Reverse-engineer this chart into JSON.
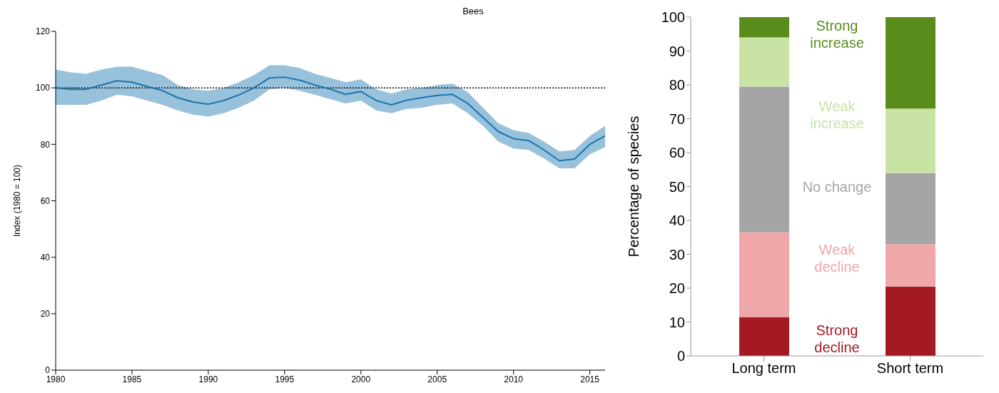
{
  "chart_data": [
    {
      "type": "line",
      "title": "Bees",
      "ylabel": "Index (1980 = 100)",
      "x": [
        1980,
        1981,
        1982,
        1983,
        1984,
        1985,
        1986,
        1987,
        1988,
        1989,
        1990,
        1991,
        1992,
        1993,
        1994,
        1995,
        1996,
        1997,
        1998,
        1999,
        2000,
        2001,
        2002,
        2003,
        2004,
        2005,
        2006,
        2007,
        2008,
        2009,
        2010,
        2011,
        2012,
        2013,
        2014,
        2015,
        2016
      ],
      "series": [
        {
          "color": "#1a75b0",
          "values": [
            100,
            99.5,
            99.5,
            101,
            102.5,
            102,
            100.5,
            99,
            96.5,
            95,
            94.2,
            95.5,
            97.5,
            100,
            103.5,
            103.8,
            102.7,
            101,
            99.5,
            97.7,
            98.7,
            95.5,
            94,
            95.6,
            96.5,
            97.3,
            97.7,
            94.5,
            89.5,
            84.5,
            82,
            81.3,
            78,
            74.2,
            74.8,
            80,
            83
          ],
          "lower": [
            94,
            94,
            94,
            95.5,
            97.5,
            97,
            95.5,
            94,
            92,
            90.5,
            89.8,
            91,
            93,
            95.5,
            99.5,
            100,
            99,
            97.5,
            96,
            94.5,
            95.5,
            92,
            91,
            92.5,
            93,
            94,
            94.5,
            91,
            86.5,
            81,
            78.5,
            78,
            75,
            71.5,
            71.5,
            76.5,
            79
          ],
          "upper": [
            106.5,
            105.5,
            105,
            106.5,
            107.5,
            107.5,
            106,
            104.5,
            101,
            99.5,
            99,
            100,
            102,
            104.5,
            108,
            108,
            107,
            105,
            103.5,
            102,
            103,
            99.5,
            98,
            99.5,
            100,
            101,
            101.5,
            98.5,
            93,
            87.5,
            85,
            84,
            81,
            77.5,
            78,
            83,
            86.5
          ]
        }
      ],
      "xlim": [
        1980,
        2016
      ],
      "xticks": [
        1980,
        1985,
        1990,
        1995,
        2000,
        2005,
        2010,
        2015
      ],
      "ylim": [
        0,
        120
      ],
      "yticks": [
        0,
        20,
        40,
        60,
        80,
        100,
        120
      ],
      "ref_lines": [
        {
          "axis": "y",
          "value": 100,
          "color": "#000000",
          "line_style": "dotted"
        }
      ]
    },
    {
      "type": "bar",
      "stacked": true,
      "ylabel": "Percentage of species",
      "categories": [
        "Long term",
        "Short term"
      ],
      "series": [
        {
          "name": "Strong decline",
          "color": "#a31a22",
          "values": [
            11.5,
            20.5
          ]
        },
        {
          "name": "Weak decline",
          "color": "#f0a7aa",
          "values": [
            25,
            12.5
          ]
        },
        {
          "name": "No change",
          "color": "#a5a5a5",
          "values": [
            43,
            21
          ]
        },
        {
          "name": "Weak increase",
          "color": "#c9e3a5",
          "values": [
            14.5,
            19
          ]
        },
        {
          "name": "Strong increase",
          "color": "#5a8c1c",
          "values": [
            6,
            27
          ]
        }
      ],
      "ylim": [
        0,
        100
      ],
      "yticks": [
        0,
        10,
        20,
        30,
        40,
        50,
        60,
        70,
        80,
        90,
        100
      ]
    }
  ]
}
